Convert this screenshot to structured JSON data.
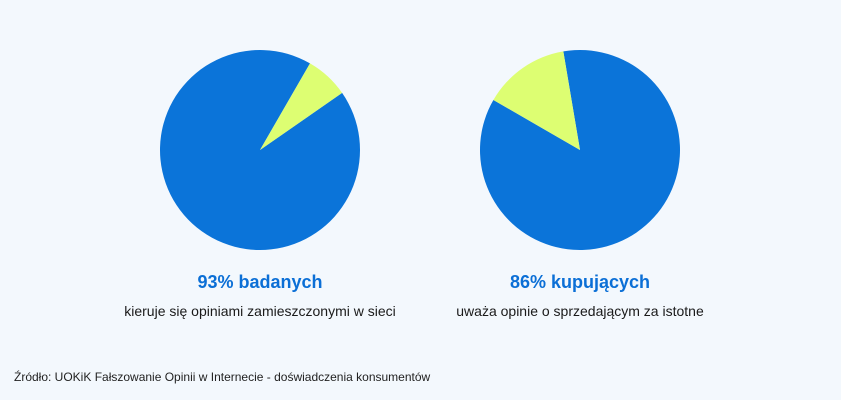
{
  "colors": {
    "primary": "#0b74d9",
    "accent": "#ddfe72",
    "headline": "#0b6fd6"
  },
  "chart_data": [
    {
      "type": "pie",
      "slices": [
        {
          "label": "",
          "value": 93,
          "color": "#0b74d9"
        },
        {
          "label": "",
          "value": 7,
          "color": "#ddfe72"
        }
      ],
      "headline": "93% badanych",
      "caption": "kieruje się opiniami zamieszczonymi w sieci"
    },
    {
      "type": "pie",
      "slices": [
        {
          "label": "",
          "value": 86,
          "color": "#0b74d9"
        },
        {
          "label": "",
          "value": 14,
          "color": "#ddfe72"
        }
      ],
      "headline": "86% kupujących",
      "caption": "uważa opinie o sprzedającym za istotne"
    }
  ],
  "source": "Źródło: UOKiK Fałszowanie Opinii w Internecie - doświadczenia konsumentów"
}
